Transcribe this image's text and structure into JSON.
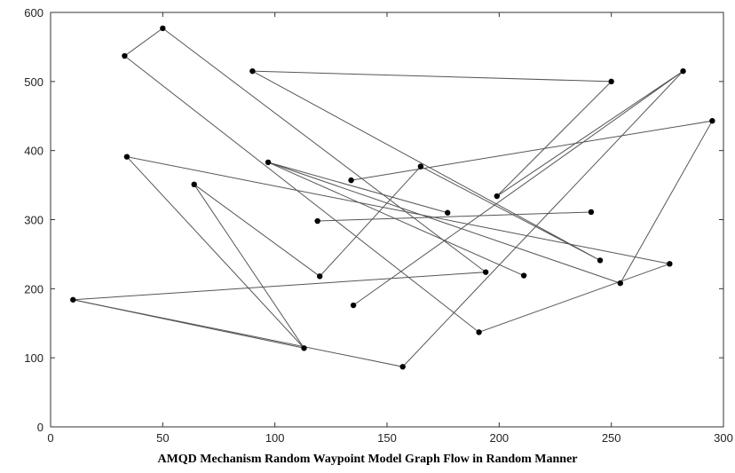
{
  "chart_data": {
    "type": "line",
    "caption": "AMQD Mechanism Random Waypoint Model Graph Flow in Random Manner",
    "xlim": [
      0,
      300
    ],
    "ylim": [
      0,
      600
    ],
    "x_ticks": [
      0,
      50,
      100,
      150,
      200,
      250,
      300
    ],
    "y_ticks": [
      0,
      100,
      200,
      300,
      400,
      500,
      600
    ],
    "grid": false,
    "legend": "none",
    "line_color": "#555555",
    "marker_color": "#000000",
    "series": [
      {
        "points": [
          [
            33,
            537
          ],
          [
            50,
            577
          ],
          [
            194,
            224
          ],
          [
            10,
            184
          ],
          [
            113,
            114
          ],
          [
            64,
            351
          ],
          [
            120,
            218
          ],
          [
            165,
            377
          ],
          [
            245,
            241
          ],
          [
            90,
            515
          ],
          [
            250,
            500
          ],
          [
            199,
            334
          ],
          [
            282,
            515
          ],
          [
            135,
            176
          ]
        ]
      },
      {
        "points": [
          [
            33,
            537
          ],
          [
            191,
            137
          ],
          [
            276,
            236
          ],
          [
            34,
            391
          ],
          [
            113,
            114
          ]
        ]
      },
      {
        "points": [
          [
            10,
            184
          ],
          [
            157,
            87
          ],
          [
            282,
            515
          ]
        ]
      },
      {
        "points": [
          [
            134,
            357
          ],
          [
            295,
            443
          ],
          [
            254,
            208
          ],
          [
            97,
            383
          ],
          [
            211,
            219
          ]
        ]
      },
      {
        "points": [
          [
            97,
            383
          ],
          [
            177,
            310
          ]
        ]
      },
      {
        "points": [
          [
            119,
            298
          ],
          [
            241,
            311
          ]
        ]
      }
    ]
  }
}
